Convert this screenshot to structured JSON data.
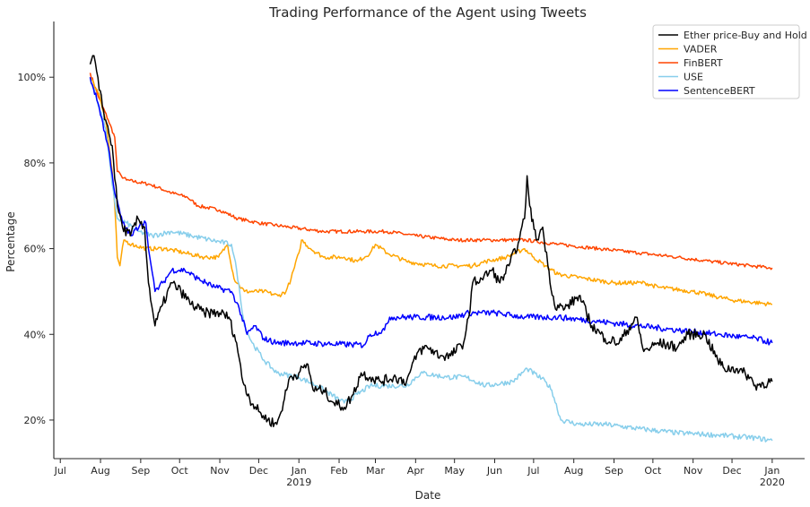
{
  "chart_data": {
    "type": "line",
    "title": "Trading Performance of the Agent using Tweets",
    "xlabel": "Date",
    "ylabel": "Percentage",
    "ylim": [
      11,
      113
    ],
    "xlim": [
      "2018-06-26",
      "2020-01-26"
    ],
    "y_ticks": [
      {
        "value": 20,
        "label": "20%"
      },
      {
        "value": 40,
        "label": "40%"
      },
      {
        "value": 60,
        "label": "60%"
      },
      {
        "value": 80,
        "label": "80%"
      },
      {
        "value": 100,
        "label": "100%"
      }
    ],
    "x_ticks": [
      {
        "date": "2018-07-01",
        "label": "Jul",
        "label2": ""
      },
      {
        "date": "2018-08-01",
        "label": "Aug",
        "label2": ""
      },
      {
        "date": "2018-09-01",
        "label": "Sep",
        "label2": ""
      },
      {
        "date": "2018-10-01",
        "label": "Oct",
        "label2": ""
      },
      {
        "date": "2018-11-01",
        "label": "Nov",
        "label2": ""
      },
      {
        "date": "2018-12-01",
        "label": "Dec",
        "label2": ""
      },
      {
        "date": "2019-01-01",
        "label": "Jan",
        "label2": "2019"
      },
      {
        "date": "2019-02-01",
        "label": "Feb",
        "label2": ""
      },
      {
        "date": "2019-03-01",
        "label": "Mar",
        "label2": ""
      },
      {
        "date": "2019-04-01",
        "label": "Apr",
        "label2": ""
      },
      {
        "date": "2019-05-01",
        "label": "May",
        "label2": ""
      },
      {
        "date": "2019-06-01",
        "label": "Jun",
        "label2": ""
      },
      {
        "date": "2019-07-01",
        "label": "Jul",
        "label2": ""
      },
      {
        "date": "2019-08-01",
        "label": "Aug",
        "label2": ""
      },
      {
        "date": "2019-09-01",
        "label": "Sep",
        "label2": ""
      },
      {
        "date": "2019-10-01",
        "label": "Oct",
        "label2": ""
      },
      {
        "date": "2019-11-01",
        "label": "Nov",
        "label2": ""
      },
      {
        "date": "2019-12-01",
        "label": "Dec",
        "label2": ""
      },
      {
        "date": "2020-01-01",
        "label": "Jan",
        "label2": "2020"
      }
    ],
    "grid": false,
    "legend_position": "top-right",
    "series": [
      {
        "name": "Ether price-Buy and Hold",
        "color": "#000000",
        "noise": 1.2,
        "points": [
          [
            "2018-07-24",
            103
          ],
          [
            "2018-07-27",
            105
          ],
          [
            "2018-07-31",
            97
          ],
          [
            "2018-08-05",
            90
          ],
          [
            "2018-08-10",
            84
          ],
          [
            "2018-08-14",
            70
          ],
          [
            "2018-08-18",
            65
          ],
          [
            "2018-08-24",
            63
          ],
          [
            "2018-08-30",
            67
          ],
          [
            "2018-09-04",
            65
          ],
          [
            "2018-09-07",
            52
          ],
          [
            "2018-09-12",
            42
          ],
          [
            "2018-09-18",
            47
          ],
          [
            "2018-09-25",
            52
          ],
          [
            "2018-10-02",
            50
          ],
          [
            "2018-10-10",
            47
          ],
          [
            "2018-10-20",
            45
          ],
          [
            "2018-11-01",
            45
          ],
          [
            "2018-11-08",
            44
          ],
          [
            "2018-11-14",
            38
          ],
          [
            "2018-11-18",
            30
          ],
          [
            "2018-11-24",
            25
          ],
          [
            "2018-12-01",
            22
          ],
          [
            "2018-12-08",
            20
          ],
          [
            "2018-12-15",
            19
          ],
          [
            "2018-12-20",
            24
          ],
          [
            "2018-12-25",
            30
          ],
          [
            "2019-01-01",
            31
          ],
          [
            "2019-01-08",
            33
          ],
          [
            "2019-01-12",
            27
          ],
          [
            "2019-01-20",
            27
          ],
          [
            "2019-01-28",
            24
          ],
          [
            "2019-02-05",
            23
          ],
          [
            "2019-02-12",
            26
          ],
          [
            "2019-02-18",
            31
          ],
          [
            "2019-02-25",
            30
          ],
          [
            "2019-03-05",
            29
          ],
          [
            "2019-03-15",
            30
          ],
          [
            "2019-03-25",
            29
          ],
          [
            "2019-04-03",
            36
          ],
          [
            "2019-04-10",
            37
          ],
          [
            "2019-04-20",
            35
          ],
          [
            "2019-04-28",
            35
          ],
          [
            "2019-05-08",
            38
          ],
          [
            "2019-05-12",
            44
          ],
          [
            "2019-05-15",
            52
          ],
          [
            "2019-05-22",
            53
          ],
          [
            "2019-05-30",
            55
          ],
          [
            "2019-06-05",
            52
          ],
          [
            "2019-06-12",
            56
          ],
          [
            "2019-06-20",
            62
          ],
          [
            "2019-06-24",
            67
          ],
          [
            "2019-06-26",
            77
          ],
          [
            "2019-06-28",
            70
          ],
          [
            "2019-07-03",
            62
          ],
          [
            "2019-07-08",
            65
          ],
          [
            "2019-07-12",
            56
          ],
          [
            "2019-07-17",
            47
          ],
          [
            "2019-07-25",
            46
          ],
          [
            "2019-08-05",
            49
          ],
          [
            "2019-08-15",
            42
          ],
          [
            "2019-08-25",
            39
          ],
          [
            "2019-09-05",
            38
          ],
          [
            "2019-09-18",
            44
          ],
          [
            "2019-09-24",
            36
          ],
          [
            "2019-10-05",
            38
          ],
          [
            "2019-10-20",
            37
          ],
          [
            "2019-10-28",
            40
          ],
          [
            "2019-11-10",
            40
          ],
          [
            "2019-11-20",
            34
          ],
          [
            "2019-11-25",
            32
          ],
          [
            "2019-12-05",
            32
          ],
          [
            "2019-12-15",
            30
          ],
          [
            "2019-12-18",
            28
          ],
          [
            "2020-01-01",
            29
          ]
        ]
      },
      {
        "name": "VADER",
        "color": "#ffa500",
        "noise": 0.5,
        "points": [
          [
            "2018-07-24",
            100
          ],
          [
            "2018-07-31",
            96
          ],
          [
            "2018-08-05",
            90
          ],
          [
            "2018-08-10",
            78
          ],
          [
            "2018-08-12",
            70
          ],
          [
            "2018-08-14",
            58
          ],
          [
            "2018-08-16",
            56
          ],
          [
            "2018-08-19",
            62
          ],
          [
            "2018-08-25",
            61
          ],
          [
            "2018-09-05",
            60
          ],
          [
            "2018-09-20",
            60
          ],
          [
            "2018-10-05",
            59
          ],
          [
            "2018-10-20",
            58
          ],
          [
            "2018-10-31",
            58
          ],
          [
            "2018-11-07",
            61
          ],
          [
            "2018-11-12",
            53
          ],
          [
            "2018-11-20",
            50
          ],
          [
            "2018-12-05",
            50
          ],
          [
            "2018-12-16",
            49
          ],
          [
            "2018-12-22",
            50
          ],
          [
            "2018-12-26",
            53
          ],
          [
            "2019-01-01",
            59
          ],
          [
            "2019-01-03",
            62
          ],
          [
            "2019-01-10",
            60
          ],
          [
            "2019-01-20",
            58
          ],
          [
            "2019-02-05",
            58
          ],
          [
            "2019-02-15",
            57
          ],
          [
            "2019-02-25",
            59
          ],
          [
            "2019-03-01",
            61
          ],
          [
            "2019-03-10",
            59
          ],
          [
            "2019-03-25",
            57
          ],
          [
            "2019-04-15",
            56
          ],
          [
            "2019-05-01",
            56
          ],
          [
            "2019-05-15",
            56
          ],
          [
            "2019-05-25",
            57
          ],
          [
            "2019-06-10",
            58
          ],
          [
            "2019-06-24",
            60
          ],
          [
            "2019-07-01",
            58
          ],
          [
            "2019-07-10",
            56
          ],
          [
            "2019-07-20",
            54
          ],
          [
            "2019-08-10",
            53
          ],
          [
            "2019-09-01",
            52
          ],
          [
            "2019-09-25",
            52
          ],
          [
            "2019-10-05",
            51
          ],
          [
            "2019-11-01",
            50
          ],
          [
            "2019-12-01",
            48
          ],
          [
            "2020-01-01",
            47
          ]
        ]
      },
      {
        "name": "FinBERT",
        "color": "#ff4500",
        "noise": 0.4,
        "points": [
          [
            "2018-07-24",
            101
          ],
          [
            "2018-07-31",
            95
          ],
          [
            "2018-08-07",
            90
          ],
          [
            "2018-08-12",
            86
          ],
          [
            "2018-08-14",
            78
          ],
          [
            "2018-08-17",
            77
          ],
          [
            "2018-08-21",
            76
          ],
          [
            "2018-09-08",
            75
          ],
          [
            "2018-09-25",
            73
          ],
          [
            "2018-10-07",
            72
          ],
          [
            "2018-10-15",
            70
          ],
          [
            "2018-11-01",
            69
          ],
          [
            "2018-11-15",
            67
          ],
          [
            "2018-12-01",
            66
          ],
          [
            "2018-12-25",
            65
          ],
          [
            "2019-01-20",
            64
          ],
          [
            "2019-02-20",
            64
          ],
          [
            "2019-03-10",
            64
          ],
          [
            "2019-04-01",
            63
          ],
          [
            "2019-05-01",
            62
          ],
          [
            "2019-06-01",
            62
          ],
          [
            "2019-06-25",
            62
          ],
          [
            "2019-07-20",
            61
          ],
          [
            "2019-08-20",
            60
          ],
          [
            "2019-09-20",
            59
          ],
          [
            "2019-10-20",
            58
          ],
          [
            "2019-11-15",
            57
          ],
          [
            "2019-12-15",
            56
          ],
          [
            "2020-01-01",
            55.5
          ]
        ]
      },
      {
        "name": "USE",
        "color": "#87ceeb",
        "noise": 0.6,
        "points": [
          [
            "2018-07-24",
            100
          ],
          [
            "2018-08-05",
            88
          ],
          [
            "2018-08-10",
            75
          ],
          [
            "2018-08-14",
            67
          ],
          [
            "2018-08-21",
            66
          ],
          [
            "2018-08-30",
            64
          ],
          [
            "2018-09-10",
            63
          ],
          [
            "2018-09-25",
            64
          ],
          [
            "2018-10-10",
            63
          ],
          [
            "2018-10-25",
            62
          ],
          [
            "2018-11-10",
            61
          ],
          [
            "2018-11-14",
            55
          ],
          [
            "2018-11-20",
            42
          ],
          [
            "2018-11-26",
            38
          ],
          [
            "2018-12-05",
            34
          ],
          [
            "2018-12-15",
            31
          ],
          [
            "2019-01-01",
            30
          ],
          [
            "2019-01-15",
            28
          ],
          [
            "2019-02-05",
            24
          ],
          [
            "2019-02-15",
            26
          ],
          [
            "2019-02-25",
            28
          ],
          [
            "2019-03-10",
            28
          ],
          [
            "2019-03-25",
            28
          ],
          [
            "2019-04-05",
            31
          ],
          [
            "2019-04-25",
            30
          ],
          [
            "2019-05-10",
            30
          ],
          [
            "2019-05-25",
            28
          ],
          [
            "2019-06-15",
            29
          ],
          [
            "2019-06-26",
            32
          ],
          [
            "2019-07-10",
            29
          ],
          [
            "2019-07-15",
            27
          ],
          [
            "2019-07-22",
            20
          ],
          [
            "2019-08-05",
            19
          ],
          [
            "2019-08-25",
            19
          ],
          [
            "2019-09-20",
            18
          ],
          [
            "2019-10-20",
            17
          ],
          [
            "2019-11-20",
            16.5
          ],
          [
            "2019-12-20",
            15.8
          ],
          [
            "2020-01-01",
            15.2
          ]
        ]
      },
      {
        "name": "SentenceBERT",
        "color": "#0000ff",
        "noise": 0.7,
        "points": [
          [
            "2018-07-24",
            100
          ],
          [
            "2018-07-31",
            93
          ],
          [
            "2018-08-08",
            82
          ],
          [
            "2018-08-12",
            73
          ],
          [
            "2018-08-18",
            66
          ],
          [
            "2018-08-25",
            63
          ],
          [
            "2018-09-01",
            66
          ],
          [
            "2018-09-05",
            66
          ],
          [
            "2018-09-08",
            58
          ],
          [
            "2018-09-12",
            50
          ],
          [
            "2018-09-18",
            52
          ],
          [
            "2018-09-25",
            55
          ],
          [
            "2018-10-05",
            55
          ],
          [
            "2018-10-15",
            53
          ],
          [
            "2018-10-28",
            51
          ],
          [
            "2018-11-10",
            50
          ],
          [
            "2018-11-16",
            46
          ],
          [
            "2018-11-22",
            40
          ],
          [
            "2018-11-28",
            42
          ],
          [
            "2018-12-05",
            39
          ],
          [
            "2018-12-15",
            38
          ],
          [
            "2019-01-01",
            38
          ],
          [
            "2019-02-20",
            37.5
          ],
          [
            "2019-02-25",
            40
          ],
          [
            "2019-03-08",
            41
          ],
          [
            "2019-03-12",
            44
          ],
          [
            "2019-04-01",
            44
          ],
          [
            "2019-05-01",
            44
          ],
          [
            "2019-05-12",
            45
          ],
          [
            "2019-06-01",
            45
          ],
          [
            "2019-06-25",
            44
          ],
          [
            "2019-07-20",
            44
          ],
          [
            "2019-08-20",
            43
          ],
          [
            "2019-09-20",
            42
          ],
          [
            "2019-10-20",
            41
          ],
          [
            "2019-11-20",
            40
          ],
          [
            "2019-12-20",
            39
          ],
          [
            "2020-01-01",
            38
          ]
        ]
      }
    ]
  }
}
